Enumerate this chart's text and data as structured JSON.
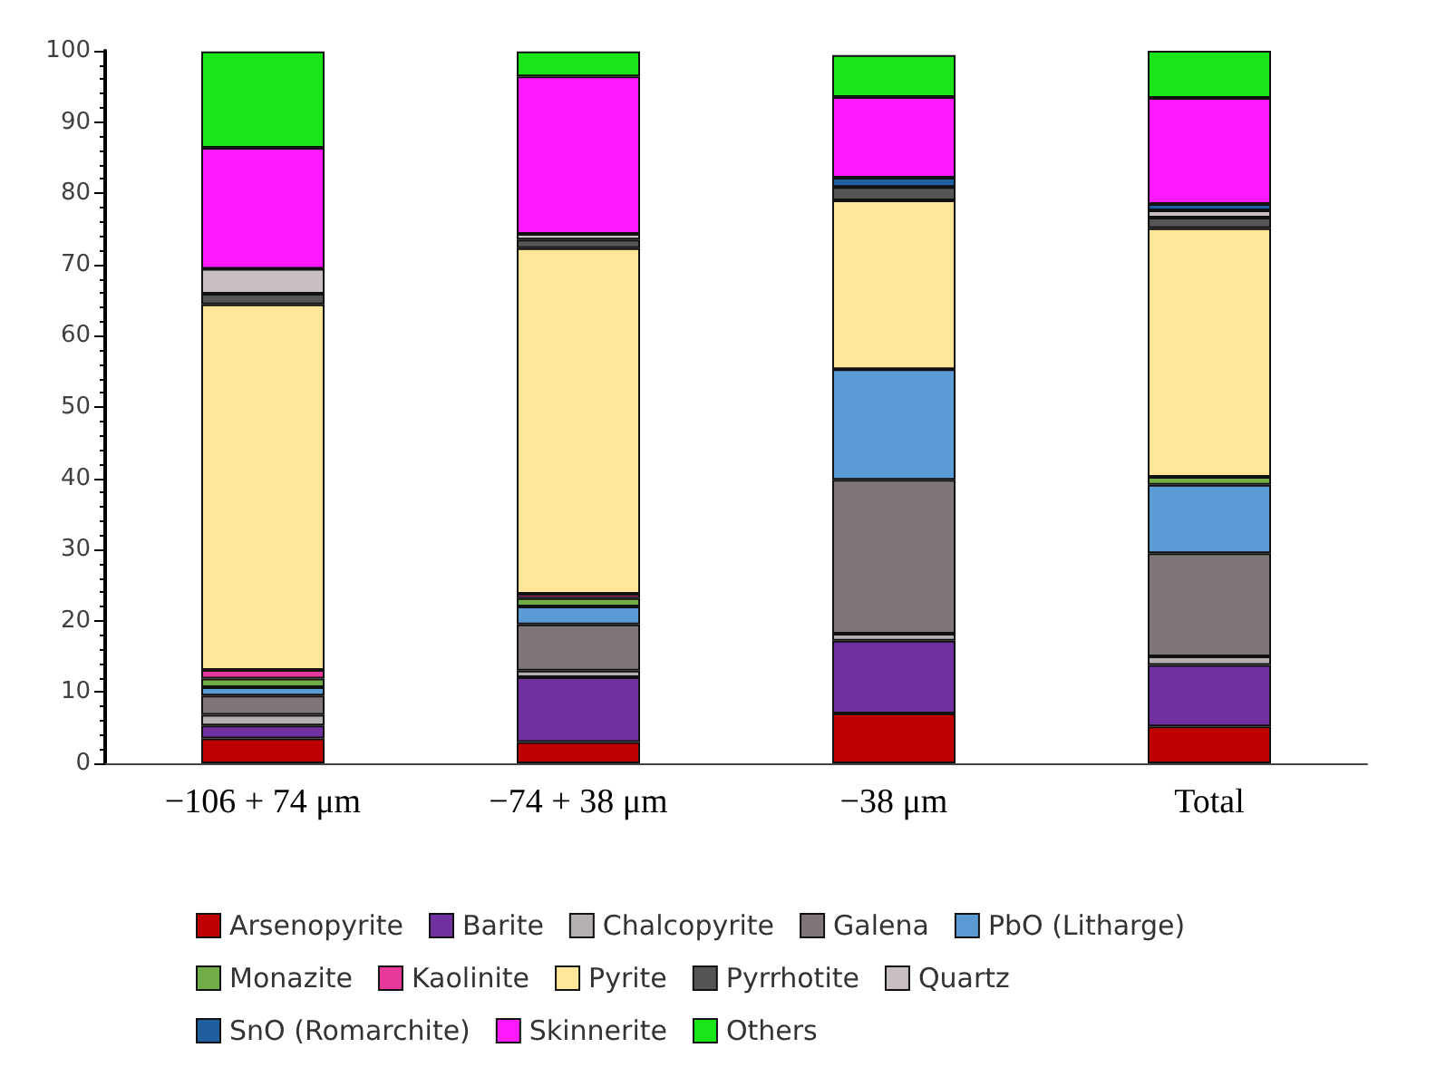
{
  "chart_data": {
    "type": "bar",
    "stacked": true,
    "categories": [
      "−106 + 74 μm",
      "−74 + 38 μm",
      "−38 μm",
      "Total"
    ],
    "series": [
      {
        "name": "Arsenopyrite",
        "color": "#c00000",
        "values": [
          3.5,
          3.0,
          7.0,
          5.2
        ]
      },
      {
        "name": "Barite",
        "color": "#7030a0",
        "values": [
          1.8,
          9.1,
          10.2,
          8.6
        ]
      },
      {
        "name": "Chalcopyrite",
        "color": "#b4b0b0",
        "values": [
          1.5,
          0.9,
          1.0,
          1.2
        ]
      },
      {
        "name": "Galena",
        "color": "#7f7777",
        "values": [
          2.7,
          6.5,
          21.6,
          14.5
        ]
      },
      {
        "name": "PbO (Litharge)",
        "color": "#5b9bd5",
        "values": [
          1.2,
          2.5,
          15.5,
          9.6
        ]
      },
      {
        "name": "Monazite",
        "color": "#70ad47",
        "values": [
          1.2,
          1.2,
          null,
          1.1
        ]
      },
      {
        "name": "Kaolinite",
        "color": "#e6399b",
        "values": [
          1.2,
          0.6,
          0,
          0
        ]
      },
      {
        "name": "Pyrite",
        "color": "#ffe699",
        "values": [
          51.3,
          48.5,
          23.7,
          34.9
        ]
      },
      {
        "name": "Pyrrhotite",
        "color": "#555555",
        "values": [
          1.5,
          1.2,
          1.9,
          1.5
        ]
      },
      {
        "name": "Quartz",
        "color": "#c8c0c0",
        "values": [
          3.5,
          0.8,
          0,
          1.0
        ]
      },
      {
        "name": "SnO (Romarchite)",
        "color": "#1f5fa0",
        "values": [
          0,
          0,
          1.3,
          0.9
        ]
      },
      {
        "name": "Skinnerite",
        "color": "#ff19ff",
        "values": [
          17,
          22.1,
          11.3,
          14.9
        ]
      },
      {
        "name": "Others",
        "color": "#19e619",
        "values": [
          13.5,
          3.5,
          5.9,
          6.6
        ]
      }
    ],
    "ylim": [
      0,
      100
    ],
    "yticks": [
      0,
      10,
      20,
      30,
      40,
      50,
      60,
      70,
      80,
      90,
      100
    ],
    "grid": false,
    "legend": "bottom"
  }
}
